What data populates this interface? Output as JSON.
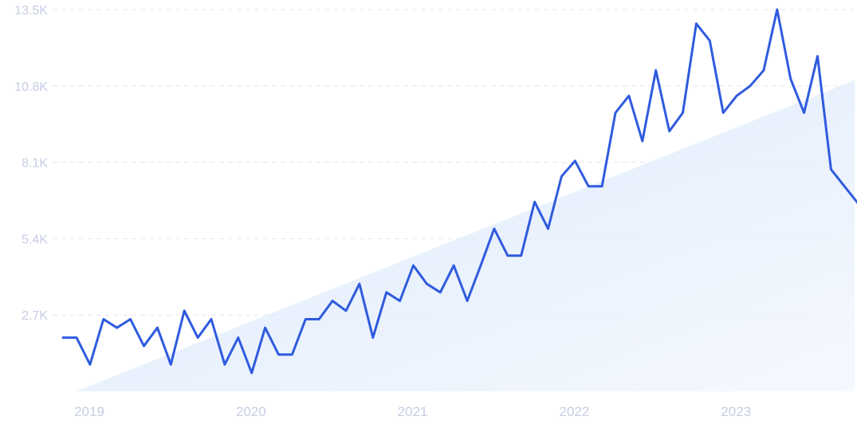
{
  "chart_data": {
    "type": "line",
    "title": "",
    "xlabel": "",
    "ylabel": "",
    "ylim": [
      0,
      13500
    ],
    "y_ticks": [
      {
        "value": 2700,
        "label": "2.7K"
      },
      {
        "value": 5400,
        "label": "5.4K"
      },
      {
        "value": 8100,
        "label": "8.1K"
      },
      {
        "value": 10800,
        "label": "10.8K"
      },
      {
        "value": 13500,
        "label": "13.5K"
      }
    ],
    "x_ticks": [
      {
        "value": "2019",
        "label": "2019"
      },
      {
        "value": "2020",
        "label": "2020"
      },
      {
        "value": "2021",
        "label": "2021"
      },
      {
        "value": "2022",
        "label": "2022"
      },
      {
        "value": "2023",
        "label": "2023"
      }
    ],
    "grid": true,
    "colors": {
      "line": "#2f5bde",
      "trend_fill": "#dce9fb",
      "grid": "#e3e6ef",
      "tick_text": "#c7cde3"
    },
    "trend": {
      "start": {
        "x": "2019-01",
        "y": 0
      },
      "end": {
        "x": "2023-11",
        "y": 11000
      }
    },
    "series": [
      {
        "x": [
          "2018-12",
          "2019-01",
          "2019-02",
          "2019-03",
          "2019-04",
          "2019-05",
          "2019-06",
          "2019-07",
          "2019-08",
          "2019-09",
          "2019-10",
          "2019-11",
          "2019-12",
          "2020-01",
          "2020-02",
          "2020-03",
          "2020-04",
          "2020-05",
          "2020-06",
          "2020-07",
          "2020-08",
          "2020-09",
          "2020-10",
          "2020-11",
          "2020-12",
          "2021-01",
          "2021-02",
          "2021-03",
          "2021-04",
          "2021-05",
          "2021-06",
          "2021-07",
          "2021-08",
          "2021-09",
          "2021-10",
          "2021-11",
          "2021-12",
          "2022-01",
          "2022-02",
          "2022-03",
          "2022-04",
          "2022-05",
          "2022-06",
          "2022-07",
          "2022-08",
          "2022-09",
          "2022-10",
          "2022-11",
          "2022-12",
          "2023-01",
          "2023-02",
          "2023-03",
          "2023-04",
          "2023-05",
          "2023-06",
          "2023-07",
          "2023-08",
          "2023-09",
          "2023-10",
          "2023-11"
        ],
        "values": [
          1900,
          1900,
          950,
          2550,
          2250,
          2550,
          1600,
          2250,
          950,
          2850,
          1900,
          2550,
          950,
          1900,
          650,
          2250,
          1300,
          1300,
          2550,
          2550,
          3200,
          2850,
          3800,
          1900,
          3500,
          3200,
          4450,
          3800,
          3500,
          4450,
          3200,
          4450,
          5750,
          4800,
          4800,
          6700,
          5750,
          7600,
          8150,
          7250,
          7250,
          9850,
          10450,
          8850,
          11350,
          9200,
          9850,
          13000,
          12400,
          9850,
          10450,
          10800,
          11350,
          13500,
          11050,
          9850,
          11850,
          7850,
          7250,
          6650
        ]
      }
    ]
  }
}
